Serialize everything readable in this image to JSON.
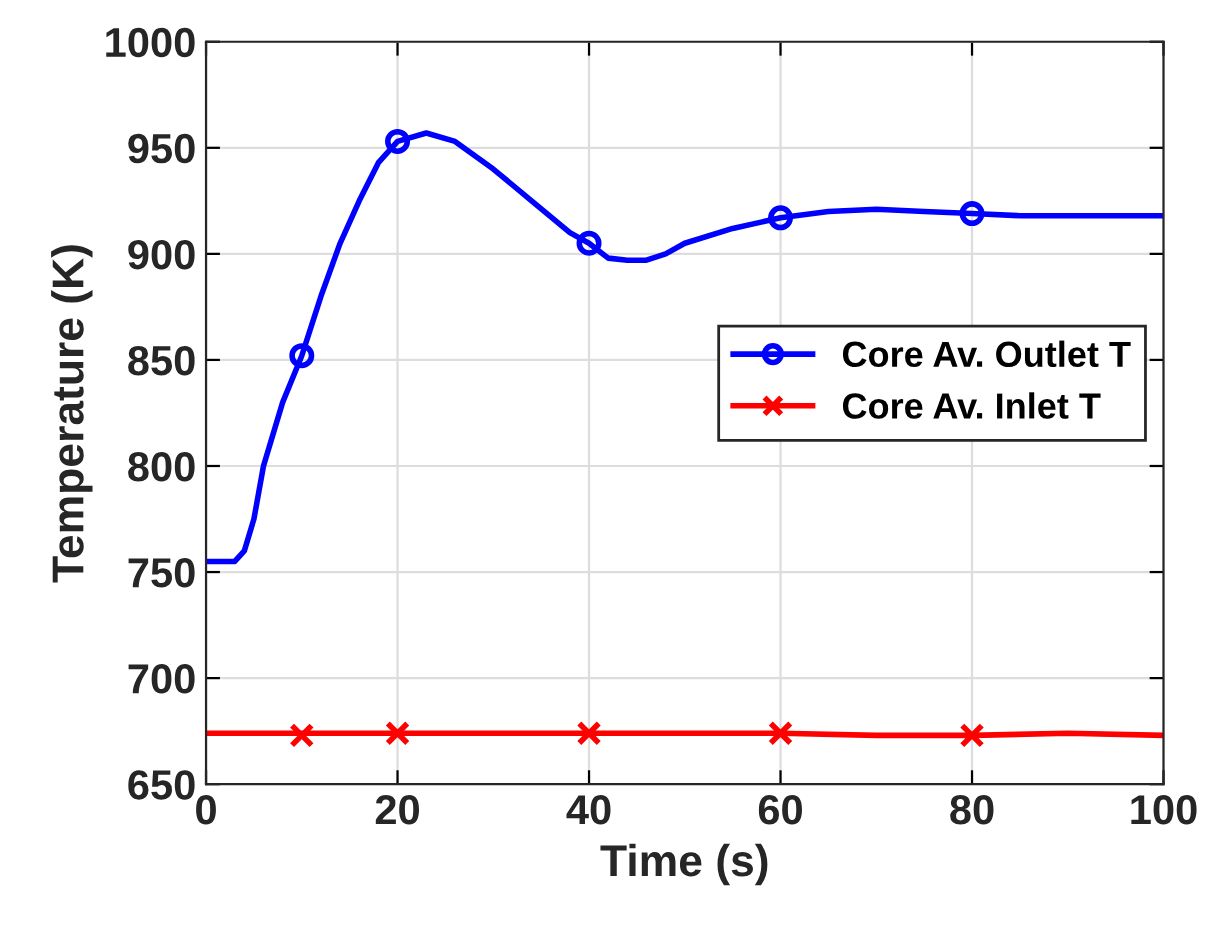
{
  "chart_data": {
    "type": "line",
    "xlabel": "Time (s)",
    "ylabel": "Temperature (K)",
    "xlim": [
      0,
      100
    ],
    "ylim": [
      650,
      1000
    ],
    "xticks": [
      0,
      20,
      40,
      60,
      80,
      100
    ],
    "yticks": [
      650,
      700,
      750,
      800,
      850,
      900,
      950,
      1000
    ],
    "grid": true,
    "legend": "right",
    "series": [
      {
        "name": "Core Av. Outlet T",
        "color": "#0000ff",
        "x": [
          0,
          3,
          4,
          5,
          6,
          8,
          10,
          12,
          14,
          16,
          18,
          20,
          23,
          26,
          30,
          34,
          38,
          40,
          42,
          44,
          46,
          48,
          50,
          55,
          60,
          65,
          70,
          75,
          80,
          85,
          90,
          100
        ],
        "values": [
          755,
          755,
          760,
          775,
          800,
          830,
          852,
          880,
          905,
          925,
          943,
          953,
          957,
          953,
          940,
          925,
          910,
          905,
          898,
          897,
          897,
          900,
          905,
          912,
          917,
          920,
          921,
          920,
          919,
          918,
          918,
          918
        ]
      },
      {
        "type": "scatter",
        "color": "#0000ff",
        "marker": "circle",
        "x": [
          10,
          20,
          40,
          60,
          80
        ],
        "values": [
          852,
          953,
          905,
          917,
          919
        ]
      },
      {
        "name": "Core Av. Inlet T",
        "color": "#ff0000",
        "x": [
          0,
          10,
          20,
          30,
          40,
          50,
          60,
          70,
          80,
          90,
          100
        ],
        "values": [
          674,
          674,
          674,
          674,
          674,
          674,
          674,
          673,
          673,
          674,
          673
        ]
      },
      {
        "type": "scatter",
        "color": "#ff0000",
        "marker": "cross",
        "x": [
          10,
          20,
          40,
          60,
          80
        ],
        "values": [
          673,
          674,
          674,
          674,
          673
        ]
      }
    ]
  }
}
